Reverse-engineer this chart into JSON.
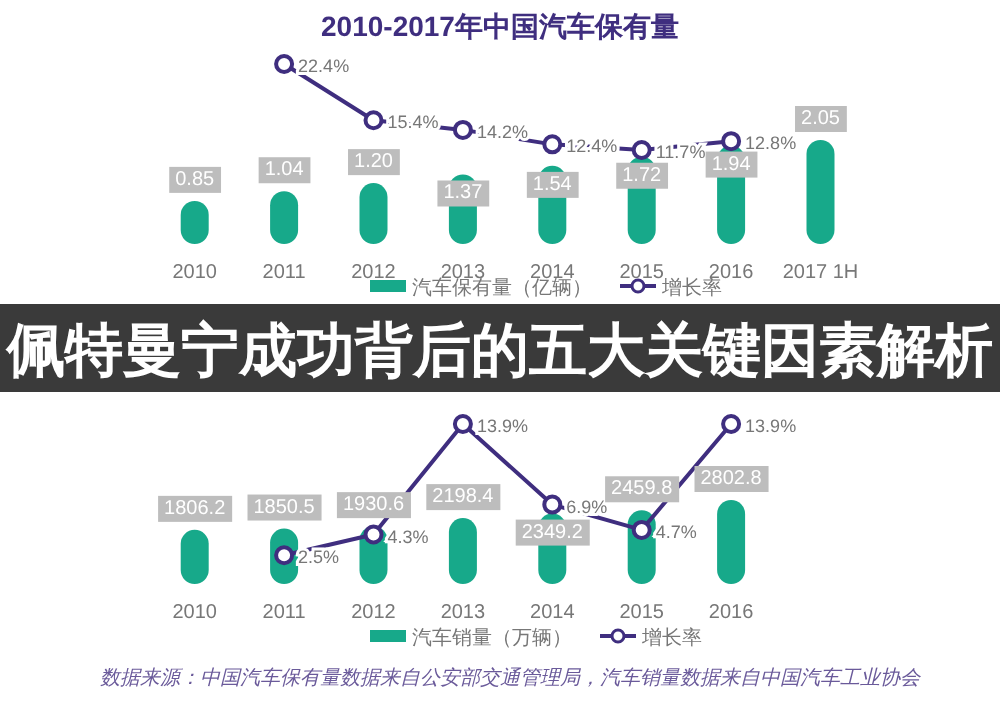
{
  "chart_data": [
    {
      "type": "bar",
      "title": "2010-2017年中国汽车保有量",
      "categories": [
        "2010",
        "2011",
        "2012",
        "2013",
        "2014",
        "2015",
        "2016",
        "2017 1H"
      ],
      "legend": "bottom",
      "marker": "circle",
      "annotations": [
        "佩特曼宁成功背后的五大关键因素解析"
      ],
      "series": [
        {
          "name": "汽车保有量（亿辆）",
          "color": "#17a98a",
          "values": [
            0.85,
            1.04,
            1.2,
            1.37,
            1.54,
            1.72,
            1.94,
            2.05
          ],
          "value_labels": [
            "0.85",
            "1.04",
            "1.20",
            "1.37",
            "1.54",
            "1.72",
            "1.94",
            "2.05"
          ]
        },
        {
          "name": "增长率",
          "type": "line",
          "axis": "y2",
          "color": "#3f2e7f",
          "values": [
            null,
            22.4,
            15.4,
            14.2,
            12.4,
            11.7,
            12.8,
            null
          ],
          "value_labels": [
            null,
            "22.4%",
            "15.4%",
            "14.2%",
            "12.4%",
            "11.7%",
            "12.8%",
            null
          ]
        }
      ]
    },
    {
      "type": "bar",
      "categories": [
        "2010",
        "2011",
        "2012",
        "2013",
        "2014",
        "2015",
        "2016"
      ],
      "legend": "bottom",
      "marker": "circle",
      "annotations": [
        "数据来源：中国汽车保有量数据来自公安部交通管理局，汽车销量数据来自中国汽车工业协会"
      ],
      "series": [
        {
          "name": "汽车销量（万辆）",
          "color": "#17a98a",
          "values": [
            1806.2,
            1850.5,
            1930.6,
            2198.4,
            2349.2,
            2459.8,
            2802.8
          ],
          "value_labels": [
            "1806.2",
            "1850.5",
            "1930.6",
            "2198.4",
            "2349.2",
            "2459.8",
            "2802.8"
          ]
        },
        {
          "name": "增长率",
          "type": "line",
          "axis": "y2",
          "color": "#3f2e7f",
          "values": [
            null,
            2.5,
            4.3,
            13.9,
            6.9,
            4.7,
            13.9
          ],
          "value_labels": [
            null,
            "2.5%",
            "4.3%",
            "13.9%",
            "6.9%",
            "4.7%",
            "13.9%"
          ]
        }
      ]
    }
  ]
}
